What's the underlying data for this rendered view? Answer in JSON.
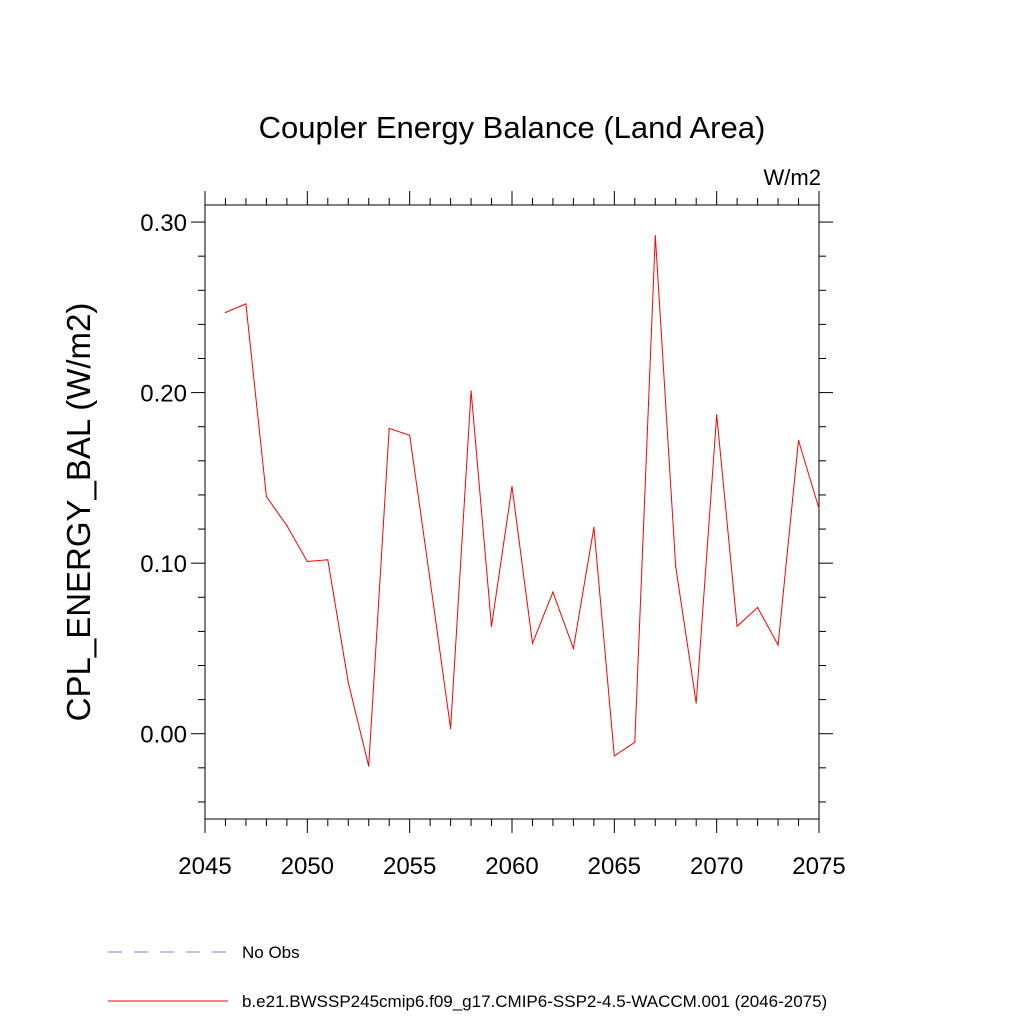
{
  "chart_data": {
    "type": "line",
    "title": "Coupler Energy Balance (Land Area)",
    "units_label": "W/m2",
    "ylabel": "CPL_ENERGY_BAL  (W/m2)",
    "xlabel": "",
    "xlim": [
      2045,
      2075
    ],
    "ylim": [
      -0.05,
      0.31
    ],
    "x_ticks": [
      2045,
      2050,
      2055,
      2060,
      2065,
      2070,
      2075
    ],
    "x_tick_labels": [
      "2045",
      "2050",
      "2055",
      "2060",
      "2065",
      "2070",
      "2075"
    ],
    "y_ticks": [
      0.0,
      0.1,
      0.2,
      0.3
    ],
    "y_tick_labels": [
      "0.00",
      "0.10",
      "0.20",
      "0.30"
    ],
    "grid": false,
    "series": [
      {
        "name": "b.e21.BWSSP245cmip6.f09_g17.CMIP6-SSP2-4.5-WACCM.001 (2046-2075)",
        "color": "#ff0000",
        "x": [
          2046,
          2047,
          2048,
          2049,
          2050,
          2051,
          2052,
          2053,
          2054,
          2055,
          2056,
          2057,
          2058,
          2059,
          2060,
          2061,
          2062,
          2063,
          2064,
          2065,
          2066,
          2067,
          2068,
          2069,
          2070,
          2071,
          2072,
          2073,
          2074,
          2075
        ],
        "y": [
          0.247,
          0.252,
          0.139,
          0.122,
          0.101,
          0.102,
          0.03,
          -0.019,
          0.179,
          0.175,
          0.09,
          0.003,
          0.201,
          0.063,
          0.145,
          0.053,
          0.083,
          0.05,
          0.121,
          -0.013,
          -0.005,
          0.292,
          0.098,
          0.018,
          0.187,
          0.063,
          0.074,
          0.052,
          0.172,
          0.132
        ]
      }
    ],
    "legend": [
      {
        "label": "No Obs",
        "style": "dashed",
        "color": "#8080c0"
      },
      {
        "label": "b.e21.BWSSP245cmip6.f09_g17.CMIP6-SSP2-4.5-WACCM.001 (2046-2075)",
        "style": "solid",
        "color": "#ff0000"
      }
    ]
  }
}
